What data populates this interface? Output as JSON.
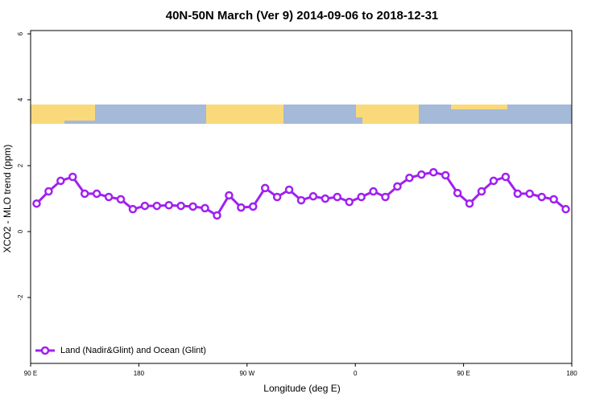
{
  "chart_data": {
    "type": "line",
    "title": "40N-50N March (Ver 9)   2014-09-06 to 2018-12-31",
    "x_label": "Longitude (deg E)",
    "y_label": "XCO2 - MLO trend (ppm)",
    "x": [
      95,
      105,
      115,
      125,
      135,
      145,
      155,
      165,
      175,
      185,
      195,
      205,
      215,
      225,
      235,
      245,
      255,
      265,
      275,
      285,
      295,
      305,
      315,
      325,
      335,
      345,
      355,
      365,
      375,
      385,
      395,
      405,
      415,
      425,
      435,
      445,
      455,
      465,
      475,
      485,
      495,
      505,
      515,
      525,
      535
    ],
    "series": [
      {
        "name": "Land (Nadir&Glint) and Ocean (Glint)",
        "color": "#a020f0",
        "values": [
          0.85,
          1.22,
          1.54,
          1.66,
          1.15,
          1.15,
          1.05,
          0.98,
          0.68,
          0.78,
          0.78,
          0.8,
          0.78,
          0.76,
          0.71,
          0.49,
          1.1,
          0.73,
          0.76,
          1.32,
          1.05,
          1.27,
          0.95,
          1.07,
          1.0,
          1.05,
          0.9,
          1.05,
          1.22,
          1.05,
          1.37,
          1.63,
          1.73,
          1.8,
          1.71,
          1.17,
          0.85,
          1.22,
          1.54,
          1.66,
          1.15,
          1.15,
          1.05,
          0.98,
          0.68
        ]
      }
    ],
    "xlim": [
      90,
      540
    ],
    "xticks": [
      {
        "value": 90,
        "label": "90 E"
      },
      {
        "value": 180,
        "label": "180"
      },
      {
        "value": 270,
        "label": "90 W"
      },
      {
        "value": 360,
        "label": "0"
      },
      {
        "value": 450,
        "label": "90 E"
      },
      {
        "value": 540,
        "label": "180"
      }
    ],
    "ylim": [
      -4,
      6.1
    ],
    "yticks": [
      -2,
      0,
      2,
      4,
      6
    ],
    "legend": "bottom-left"
  }
}
